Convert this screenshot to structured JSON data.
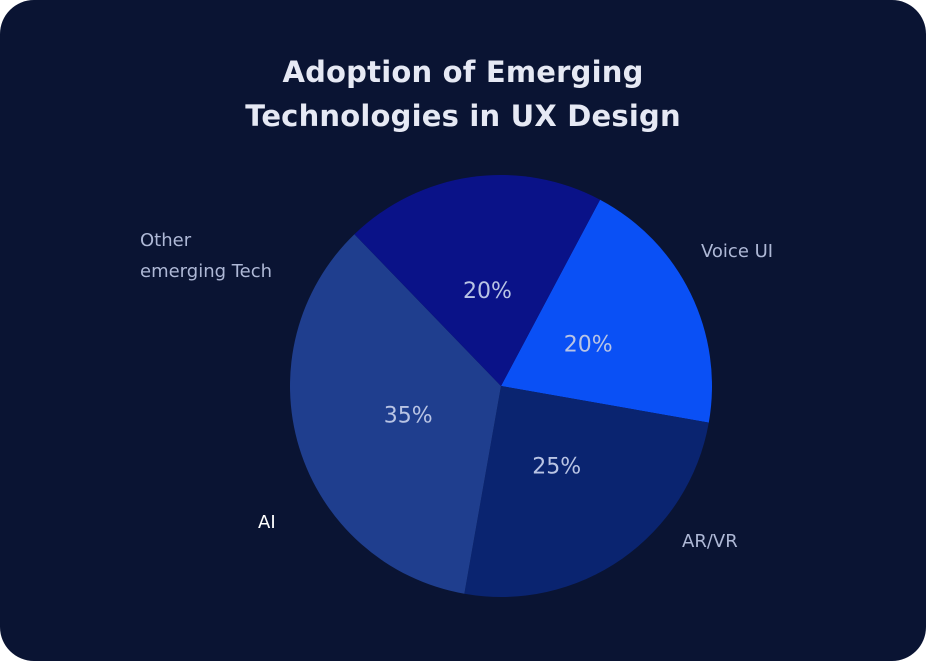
{
  "chart_data": {
    "type": "pie",
    "title_lines": [
      "Adoption of Emerging",
      "Technologies in UX Design"
    ],
    "slices": [
      {
        "category": "Voice UI",
        "category_lines": [
          "Voice UI"
        ],
        "value": 20,
        "label": "20%",
        "color": "#0a50f5",
        "label_color": "#aeb8d6"
      },
      {
        "category": "AR/VR",
        "category_lines": [
          "AR/VR"
        ],
        "value": 25,
        "label": "25%",
        "color": "#0a2470",
        "label_color": "#aeb8d6"
      },
      {
        "category": "AI",
        "category_lines": [
          "AI"
        ],
        "value": 35,
        "label": "35%",
        "color": "#1f3e8e",
        "label_color": "#ffffff"
      },
      {
        "category": "Other emerging Tech",
        "category_lines": [
          "Other",
          "emerging Tech"
        ],
        "value": 20,
        "label": "20%",
        "color": "#0a1288",
        "label_color": "#aeb8d6"
      }
    ]
  }
}
